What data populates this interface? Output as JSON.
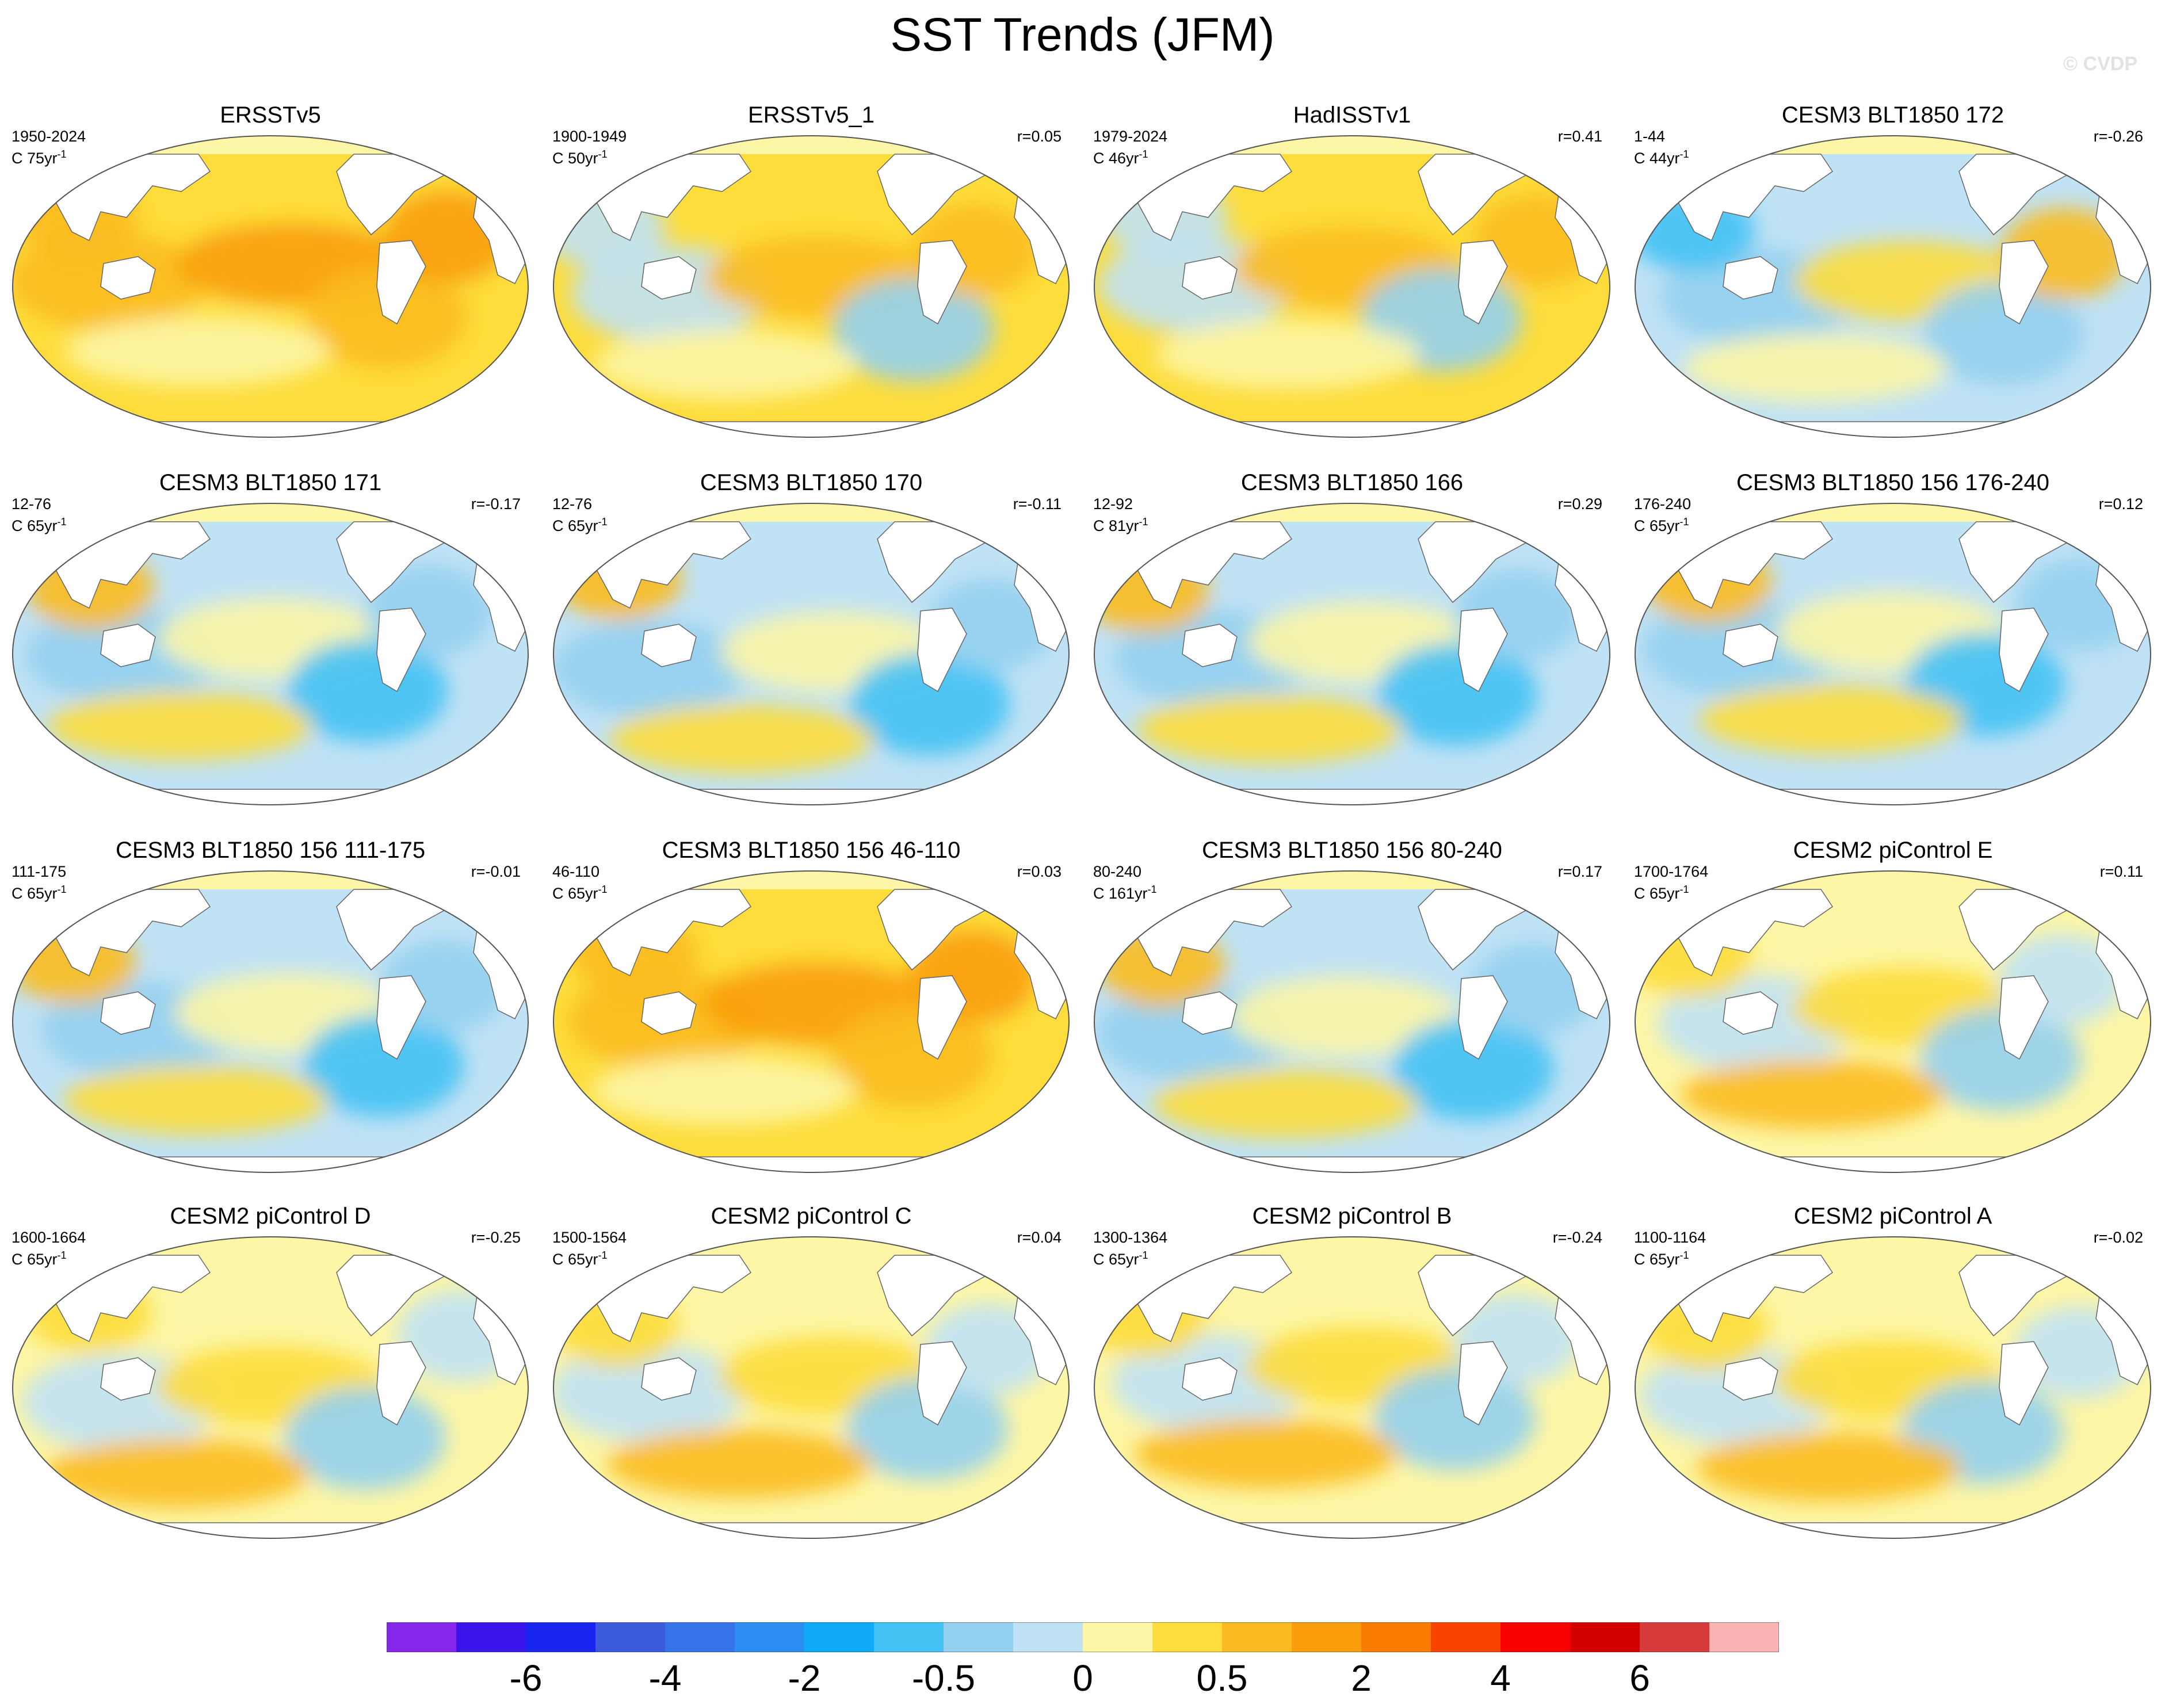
{
  "title": "SST Trends (JFM)",
  "watermark": "© CVDP",
  "panels": [
    {
      "title": "ERSSTv5",
      "years": "1950-2024",
      "count": "75",
      "r": "",
      "pattern": "warm-strong"
    },
    {
      "title": "ERSSTv5_1",
      "years": "1900-1949",
      "count": "50",
      "r": "r=0.05",
      "pattern": "warm-mixed"
    },
    {
      "title": "HadISSTv1",
      "years": "1979-2024",
      "count": "46",
      "r": "r=0.41",
      "pattern": "warm-mixed"
    },
    {
      "title": "CESM3 BLT1850 172",
      "years": "1-44",
      "count": "44",
      "r": "r=-0.26",
      "pattern": "cool-south-warm"
    },
    {
      "title": "CESM3 BLT1850 171",
      "years": "12-76",
      "count": "65",
      "r": "r=-0.17",
      "pattern": "cool"
    },
    {
      "title": "CESM3 BLT1850 170",
      "years": "12-76",
      "count": "65",
      "r": "r=-0.11",
      "pattern": "cool"
    },
    {
      "title": "CESM3 BLT1850 166",
      "years": "12-92",
      "count": "81",
      "r": "r=0.29",
      "pattern": "cool"
    },
    {
      "title": "CESM3 BLT1850 156 176-240",
      "years": "176-240",
      "count": "65",
      "r": "r=0.12",
      "pattern": "cool"
    },
    {
      "title": "CESM3 BLT1850 156 111-175",
      "years": "111-175",
      "count": "65",
      "r": "r=-0.01",
      "pattern": "cool"
    },
    {
      "title": "CESM3 BLT1850 156 46-110",
      "years": "46-110",
      "count": "65",
      "r": "r=0.03",
      "pattern": "warm-strong"
    },
    {
      "title": "CESM3 BLT1850 156 80-240",
      "years": "80-240",
      "count": "161",
      "r": "r=0.17",
      "pattern": "cool"
    },
    {
      "title": "CESM2 piControl E",
      "years": "1700-1764",
      "count": "65",
      "r": "r=0.11",
      "pattern": "mixed"
    },
    {
      "title": "CESM2 piControl D",
      "years": "1600-1664",
      "count": "65",
      "r": "r=-0.25",
      "pattern": "mixed"
    },
    {
      "title": "CESM2 piControl C",
      "years": "1500-1564",
      "count": "65",
      "r": "r=0.04",
      "pattern": "mixed"
    },
    {
      "title": "CESM2 piControl B",
      "years": "1300-1364",
      "count": "65",
      "r": "r=-0.24",
      "pattern": "mixed"
    },
    {
      "title": "CESM2 piControl A",
      "years": "1100-1164",
      "count": "65",
      "r": "r=-0.02",
      "pattern": "mixed"
    }
  ],
  "unit_prefix": "C",
  "unit_base": "yr",
  "unit_exp": "-1",
  "colorbar": {
    "colors": [
      "#8626ea",
      "#3a14ea",
      "#1a24f0",
      "#3c5bdc",
      "#3673e8",
      "#2c8df2",
      "#0eaaf7",
      "#44c2f4",
      "#94d0f0",
      "#c0e2f5",
      "#fdf6a6",
      "#fddd3c",
      "#fbbb20",
      "#f99d0b",
      "#f97c00",
      "#f94400",
      "#f90000",
      "#d40000",
      "#d63a3a",
      "#fab4b4"
    ],
    "labels": [
      "-6",
      "-4",
      "-2",
      "-0.5",
      "0",
      "0.5",
      "2",
      "4",
      "6"
    ],
    "label_boundaries": [
      2,
      4,
      6,
      8,
      10,
      12,
      14,
      16,
      18
    ]
  },
  "chart_data": {
    "type": "heatmap",
    "title": "SST Trends (JFM)",
    "projection": "Robinson global maps",
    "color_scale_labels": [
      "-6",
      "-4",
      "-2",
      "-0.5",
      "0",
      "0.5",
      "2",
      "4",
      "6"
    ],
    "panels": [
      {
        "name": "ERSSTv5",
        "years": "1950-2024",
        "length_yr": 75,
        "r": null
      },
      {
        "name": "ERSSTv5_1",
        "years": "1900-1949",
        "length_yr": 50,
        "r": 0.05
      },
      {
        "name": "HadISSTv1",
        "years": "1979-2024",
        "length_yr": 46,
        "r": 0.41
      },
      {
        "name": "CESM3 BLT1850 172",
        "years": "1-44",
        "length_yr": 44,
        "r": -0.26
      },
      {
        "name": "CESM3 BLT1850 171",
        "years": "12-76",
        "length_yr": 65,
        "r": -0.17
      },
      {
        "name": "CESM3 BLT1850 170",
        "years": "12-76",
        "length_yr": 65,
        "r": -0.11
      },
      {
        "name": "CESM3 BLT1850 166",
        "years": "12-92",
        "length_yr": 81,
        "r": 0.29
      },
      {
        "name": "CESM3 BLT1850 156 176-240",
        "years": "176-240",
        "length_yr": 65,
        "r": 0.12
      },
      {
        "name": "CESM3 BLT1850 156 111-175",
        "years": "111-175",
        "length_yr": 65,
        "r": -0.01
      },
      {
        "name": "CESM3 BLT1850 156 46-110",
        "years": "46-110",
        "length_yr": 65,
        "r": 0.03
      },
      {
        "name": "CESM3 BLT1850 156 80-240",
        "years": "80-240",
        "length_yr": 161,
        "r": 0.17
      },
      {
        "name": "CESM2 piControl E",
        "years": "1700-1764",
        "length_yr": 65,
        "r": 0.11
      },
      {
        "name": "CESM2 piControl D",
        "years": "1600-1664",
        "length_yr": 65,
        "r": -0.25
      },
      {
        "name": "CESM2 piControl C",
        "years": "1500-1564",
        "length_yr": 65,
        "r": 0.04
      },
      {
        "name": "CESM2 piControl B",
        "years": "1300-1364",
        "length_yr": 65,
        "r": -0.24
      },
      {
        "name": "CESM2 piControl A",
        "years": "1100-1164",
        "length_yr": 65,
        "r": -0.02
      }
    ]
  }
}
